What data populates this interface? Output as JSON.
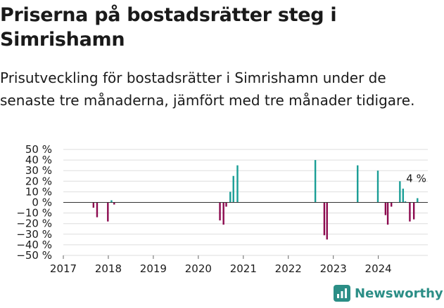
{
  "title": "Priserna på bostadsrätter steg i Simrishamn",
  "subtitle": "Prisutveckling för bostadsrätter i Simrishamn under de senaste tre månaderna, jämfört med tre månader tidigare.",
  "brand": {
    "name": "Newsworthy",
    "icon": "newsworthy-logo-icon"
  },
  "colors": {
    "positive": "#1a9e96",
    "negative": "#8c0a4f",
    "grid": "#dddddd",
    "zero": "#333333",
    "brand": "#2b8e86"
  },
  "chart_data": {
    "type": "bar",
    "title": "",
    "xlabel": "",
    "ylabel": "",
    "ylim": [
      -50,
      50
    ],
    "xlim": [
      2017.0,
      2025.1
    ],
    "y_ticks": [
      {
        "value": 50,
        "label": "50 %"
      },
      {
        "value": 40,
        "label": "40 %"
      },
      {
        "value": 30,
        "label": "30 %"
      },
      {
        "value": 20,
        "label": "20 %"
      },
      {
        "value": 10,
        "label": "10 %"
      },
      {
        "value": 0,
        "label": "0 %"
      },
      {
        "value": -10,
        "label": "−10 %"
      },
      {
        "value": -20,
        "label": "−20 %"
      },
      {
        "value": -30,
        "label": "−30 %"
      },
      {
        "value": -40,
        "label": "−40 %"
      },
      {
        "value": -50,
        "label": "−50 %"
      }
    ],
    "x_ticks": [
      {
        "value": 2017,
        "label": "2017"
      },
      {
        "value": 2018,
        "label": "2018"
      },
      {
        "value": 2019,
        "label": "2019"
      },
      {
        "value": 2020,
        "label": "2020"
      },
      {
        "value": 2021,
        "label": "2021"
      },
      {
        "value": 2022,
        "label": "2022"
      },
      {
        "value": 2023,
        "label": "2023"
      },
      {
        "value": 2024,
        "label": "2024"
      }
    ],
    "grid": true,
    "series": [
      {
        "values": [
          {
            "x": 2017.67,
            "y": -5
          },
          {
            "x": 2017.75,
            "y": -14
          },
          {
            "x": 2017.99,
            "y": -18
          },
          {
            "x": 2018.07,
            "y": 2
          },
          {
            "x": 2018.13,
            "y": -2
          },
          {
            "x": 2020.48,
            "y": -17
          },
          {
            "x": 2020.56,
            "y": -21
          },
          {
            "x": 2020.62,
            "y": -4
          },
          {
            "x": 2020.71,
            "y": 10
          },
          {
            "x": 2020.78,
            "y": 25
          },
          {
            "x": 2020.87,
            "y": 35
          },
          {
            "x": 2022.6,
            "y": 40
          },
          {
            "x": 2022.8,
            "y": -31
          },
          {
            "x": 2022.86,
            "y": -35
          },
          {
            "x": 2023.54,
            "y": 35
          },
          {
            "x": 2023.99,
            "y": 30
          },
          {
            "x": 2024.16,
            "y": -12
          },
          {
            "x": 2024.21,
            "y": -21
          },
          {
            "x": 2024.29,
            "y": -4
          },
          {
            "x": 2024.48,
            "y": 20
          },
          {
            "x": 2024.55,
            "y": 13
          },
          {
            "x": 2024.6,
            "y": 1
          },
          {
            "x": 2024.7,
            "y": -18
          },
          {
            "x": 2024.79,
            "y": -16
          },
          {
            "x": 2024.87,
            "y": 4
          }
        ]
      }
    ],
    "annotations": [
      {
        "x": 2024.87,
        "y": 4,
        "text": "4 %"
      }
    ]
  }
}
